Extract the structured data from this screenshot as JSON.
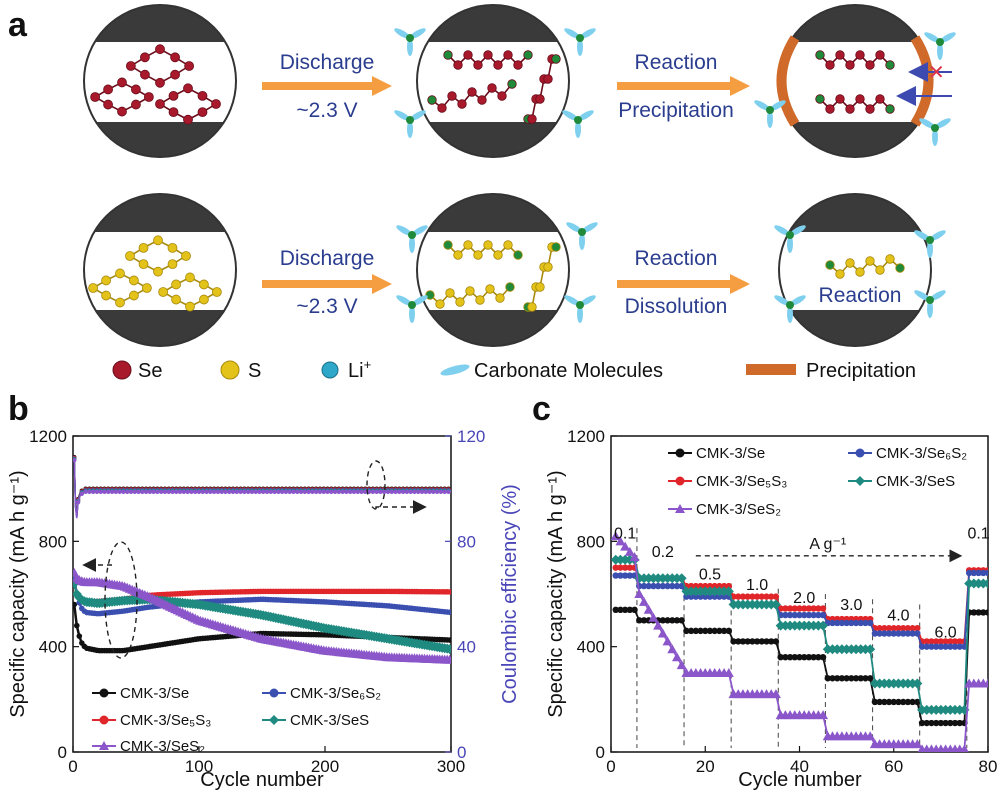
{
  "panel_a": {
    "letter": "a",
    "row1": {
      "arrow1_top": "Discharge",
      "arrow1_bottom": "~2.3 V",
      "arrow2_top": "Reaction",
      "arrow2_bottom": "Precipitation"
    },
    "row2": {
      "arrow1_top": "Discharge",
      "arrow1_bottom": "~2.3 V",
      "arrow2_top": "Reaction",
      "arrow2_bottom": "Dissolution",
      "final_label": "Reaction"
    },
    "legend": {
      "se": "Se",
      "s": "S",
      "li_base": "Li",
      "li_sup": "+",
      "carbonate": "Carbonate Molecules",
      "precip": "Precipitation"
    },
    "colors": {
      "se": "#a8192c",
      "s": "#e3c21a",
      "li": "#2ea7c9",
      "green": "#1f8a3a",
      "carbonate": "#7fd0ee",
      "precip": "#cf6a2a",
      "arrow": "#f4922c",
      "text": "#2a3d8f"
    }
  },
  "chart_data": [
    {
      "id": "b",
      "type": "line",
      "letter": "b",
      "xlabel": "Cycle number",
      "ylabel": "Specific capacity (mA h g⁻¹)",
      "y2label": "Coulombic efficiency (%)",
      "xlim": [
        0,
        300
      ],
      "ylim": [
        0,
        1200
      ],
      "y2lim": [
        0,
        120
      ],
      "xticks": [
        0,
        100,
        200,
        300
      ],
      "yticks": [
        0,
        400,
        800,
        1200
      ],
      "y2ticks": [
        0,
        40,
        80,
        120
      ],
      "legend": [
        {
          "label": "CMK-3/Se",
          "color": "#111111",
          "marker": "circle"
        },
        {
          "label": "CMK-3/Se₆S₂",
          "color": "#3b4fb0",
          "marker": "circle"
        },
        {
          "label": "CMK-3/Se₅S₃",
          "color": "#e0262a",
          "marker": "circle"
        },
        {
          "label": "CMK-3/SeS",
          "color": "#1f8a80",
          "marker": "diamond"
        },
        {
          "label": "CMK-3/SeS₂",
          "color": "#8a56c9",
          "marker": "triangle"
        }
      ],
      "series": [
        {
          "name": "CMK-3/Se",
          "color": "#111111",
          "x": [
            1,
            3,
            6,
            10,
            20,
            40,
            60,
            100,
            150,
            200,
            250,
            300
          ],
          "y": [
            560,
            480,
            420,
            395,
            385,
            385,
            400,
            430,
            450,
            445,
            435,
            425
          ]
        },
        {
          "name": "CMK-3/Se₆S₂",
          "color": "#3b4fb0",
          "x": [
            1,
            3,
            6,
            10,
            20,
            40,
            60,
            100,
            150,
            200,
            250,
            300
          ],
          "y": [
            660,
            600,
            550,
            530,
            525,
            535,
            550,
            570,
            580,
            570,
            555,
            530
          ]
        },
        {
          "name": "CMK-3/Se₅S₃",
          "color": "#e0262a",
          "x": [
            1,
            3,
            6,
            10,
            20,
            40,
            60,
            100,
            150,
            200,
            250,
            300
          ],
          "y": [
            640,
            600,
            575,
            570,
            572,
            580,
            595,
            605,
            610,
            610,
            610,
            608
          ]
        },
        {
          "name": "CMK-3/SeS",
          "color": "#1f8a80",
          "x": [
            1,
            3,
            6,
            10,
            20,
            40,
            60,
            100,
            150,
            200,
            250,
            300
          ],
          "y": [
            640,
            600,
            580,
            570,
            565,
            575,
            580,
            560,
            520,
            470,
            430,
            390
          ]
        },
        {
          "name": "CMK-3/SeS₂",
          "color": "#8a56c9",
          "x": [
            1,
            3,
            6,
            10,
            20,
            40,
            60,
            100,
            150,
            200,
            250,
            300
          ],
          "y": [
            680,
            660,
            650,
            645,
            645,
            630,
            590,
            500,
            430,
            385,
            360,
            350
          ]
        }
      ],
      "ce_series": {
        "x": [
          1,
          2,
          3,
          4,
          6,
          10,
          20,
          50,
          100,
          150,
          200,
          250,
          300
        ],
        "y": [
          112,
          94,
          90,
          96,
          99,
          100,
          100,
          100,
          100,
          100,
          100,
          100,
          100
        ]
      }
    },
    {
      "id": "c",
      "type": "line",
      "letter": "c",
      "xlabel": "Cycle number",
      "ylabel": "Specific capacity (mA h g⁻¹)",
      "xlim": [
        0,
        80
      ],
      "ylim": [
        0,
        1200
      ],
      "xticks": [
        0,
        20,
        40,
        60,
        80
      ],
      "yticks": [
        0,
        400,
        800,
        1200
      ],
      "rate_unit": "A g⁻¹",
      "rates": [
        {
          "label": "0.1",
          "x": 3
        },
        {
          "label": "0.2",
          "x": 11
        },
        {
          "label": "0.5",
          "x": 21
        },
        {
          "label": "1.0",
          "x": 31
        },
        {
          "label": "2.0",
          "x": 41
        },
        {
          "label": "3.0",
          "x": 51
        },
        {
          "label": "4.0",
          "x": 61
        },
        {
          "label": "6.0",
          "x": 71
        },
        {
          "label": "0.1",
          "x": 78
        }
      ],
      "boundaries": [
        5,
        15,
        25,
        35,
        45,
        55,
        65,
        75
      ],
      "legend": [
        {
          "label": "CMK-3/Se",
          "color": "#111111",
          "marker": "circle"
        },
        {
          "label": "CMK-3/Se₆S₂",
          "color": "#3b4fb0",
          "marker": "circle"
        },
        {
          "label": "CMK-3/Se₅S₃",
          "color": "#e0262a",
          "marker": "circle"
        },
        {
          "label": "CMK-3/SeS",
          "color": "#1f8a80",
          "marker": "diamond"
        },
        {
          "label": "CMK-3/SeS₂",
          "color": "#8a56c9",
          "marker": "triangle"
        }
      ],
      "series": [
        {
          "name": "CMK-3/Se",
          "color": "#111111",
          "levels": [
            540,
            500,
            460,
            420,
            360,
            280,
            190,
            110,
            530
          ]
        },
        {
          "name": "CMK-3/Se₅S₃",
          "color": "#e0262a",
          "levels": [
            700,
            660,
            630,
            590,
            545,
            505,
            470,
            420,
            690
          ]
        },
        {
          "name": "CMK-3/Se₆S₂",
          "color": "#3b4fb0",
          "levels": [
            670,
            630,
            590,
            560,
            520,
            490,
            450,
            400,
            680
          ]
        },
        {
          "name": "CMK-3/SeS",
          "color": "#1f8a80",
          "levels": [
            730,
            660,
            610,
            560,
            480,
            390,
            260,
            160,
            640
          ]
        },
        {
          "name": "CMK-3/SeS₂",
          "color": "#8a56c9",
          "levels": [
            800,
            620,
            300,
            220,
            140,
            60,
            30,
            10,
            260
          ]
        }
      ]
    }
  ]
}
